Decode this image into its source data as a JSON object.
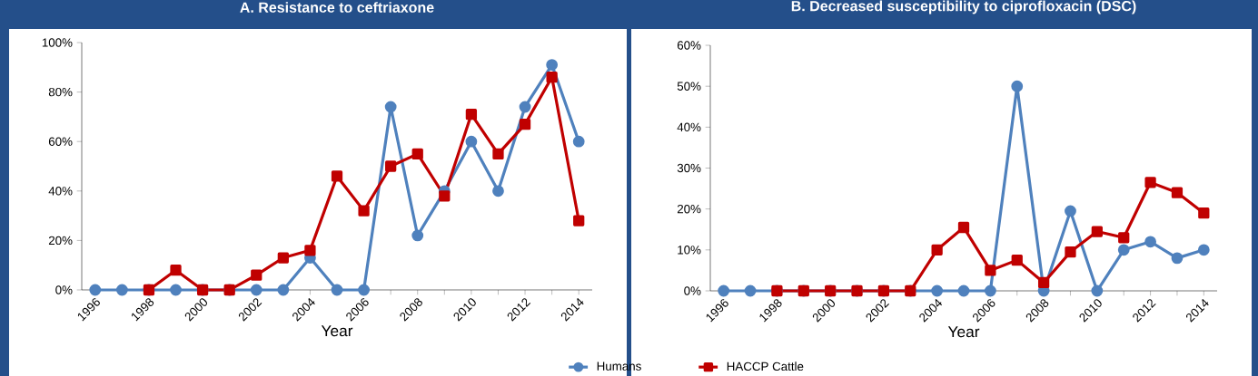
{
  "chart_data": [
    {
      "type": "line",
      "title": "A. Resistance to ceftriaxone",
      "xlabel": "Year",
      "categories": [
        "1996",
        null,
        "1998",
        null,
        "2000",
        null,
        "2002",
        null,
        "2004",
        null,
        "2006",
        null,
        "2008",
        null,
        "2010",
        null,
        "2012",
        null,
        "2014"
      ],
      "series": [
        {
          "name": "Humans",
          "color": "#4f81bd",
          "marker": "circle",
          "values": [
            0,
            0,
            0,
            0,
            0,
            0,
            0,
            0,
            13,
            0,
            0,
            74,
            22,
            40,
            60,
            40,
            74,
            91,
            60
          ]
        },
        {
          "name": "HACCP Cattle",
          "color": "#c00000",
          "marker": "square",
          "values": [
            null,
            null,
            0,
            8,
            0,
            0,
            6,
            13,
            16,
            46,
            32,
            50,
            55,
            38,
            71,
            55,
            67,
            86,
            28
          ]
        }
      ],
      "ylim": [
        0,
        100
      ],
      "yticks": [
        {
          "value": 0,
          "label": "0%"
        },
        {
          "value": 20,
          "label": "20%"
        },
        {
          "value": 40,
          "label": "40%"
        },
        {
          "value": 60,
          "label": "60%"
        },
        {
          "value": 80,
          "label": "80%"
        },
        {
          "value": 100,
          "label": "100%"
        }
      ],
      "legend": "bottom"
    },
    {
      "type": "line",
      "title": "B. Decreased susceptibility to ciprofloxacin (DSC)",
      "xlabel": "Year",
      "categories": [
        "1996",
        null,
        "1998",
        null,
        "2000",
        null,
        "2002",
        null,
        "2004",
        null,
        "2006",
        null,
        "2008",
        null,
        "2010",
        null,
        "2012",
        null,
        "2014"
      ],
      "series": [
        {
          "color": "#4f81bd",
          "marker": "circle",
          "values": [
            0,
            0,
            0,
            0,
            0,
            0,
            0,
            0,
            0,
            0,
            0,
            50,
            0,
            19.5,
            0,
            10,
            12,
            8,
            10
          ]
        },
        {
          "color": "#c00000",
          "marker": "square",
          "values": [
            null,
            null,
            0,
            0,
            0,
            0,
            0,
            0,
            10,
            15.5,
            5,
            7.5,
            2,
            9.5,
            14.5,
            13,
            26.5,
            24,
            19
          ]
        }
      ],
      "ylim": [
        0,
        60
      ],
      "yticks": [
        {
          "value": 0,
          "label": "0%"
        },
        {
          "value": 10,
          "label": "10%"
        },
        {
          "value": 20,
          "label": "20%"
        },
        {
          "value": 30,
          "label": "30%"
        },
        {
          "value": 40,
          "label": "40%"
        },
        {
          "value": 50,
          "label": "50%"
        },
        {
          "value": 60,
          "label": "60%"
        }
      ]
    }
  ]
}
